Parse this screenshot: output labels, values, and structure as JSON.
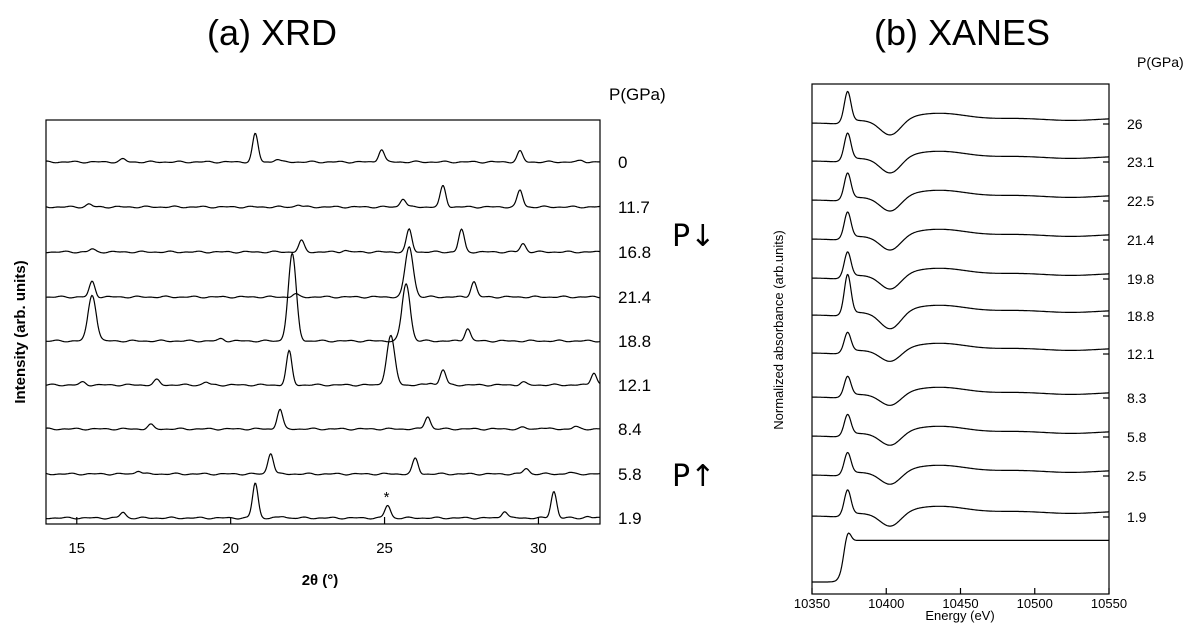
{
  "chart_data": [
    {
      "type": "line",
      "title": "(a) XRD",
      "xlabel": "2θ (°)",
      "ylabel": "Intensity (arb. units)",
      "xlim": [
        14,
        32
      ],
      "x_ticks": [
        15,
        20,
        25,
        30
      ],
      "pressure_header": "P(GPa)",
      "direction_labels": {
        "decreasing": "P↓",
        "increasing": "P↑"
      },
      "annotation": "*",
      "annotation_x": 25.1,
      "series": [
        {
          "name": "0",
          "peaks": [
            [
              16.5,
              0.1
            ],
            [
              20.8,
              1.0
            ],
            [
              21.5,
              0.1
            ],
            [
              24.9,
              0.45
            ],
            [
              29.4,
              0.38
            ],
            [
              31.4,
              0.05
            ]
          ]
        },
        {
          "name": "11.7",
          "peaks": [
            [
              15.4,
              0.1
            ],
            [
              22.2,
              0.08
            ],
            [
              25.6,
              0.3
            ],
            [
              26.9,
              0.75
            ],
            [
              29.4,
              0.6
            ]
          ]
        },
        {
          "name": "16.8",
          "peaks": [
            [
              15.5,
              0.1
            ],
            [
              22.3,
              0.4
            ],
            [
              23.7,
              0.06
            ],
            [
              25.8,
              0.8
            ],
            [
              27.5,
              0.8
            ],
            [
              29.5,
              0.3
            ]
          ]
        },
        {
          "name": "21.4",
          "peaks": [
            [
              15.5,
              0.55
            ],
            [
              22.1,
              0.1
            ],
            [
              25.8,
              1.8
            ],
            [
              27.9,
              0.55
            ]
          ]
        },
        {
          "name": "18.8",
          "peaks": [
            [
              15.5,
              1.65
            ],
            [
              19.7,
              0.08
            ],
            [
              22.0,
              3.1
            ],
            [
              25.7,
              2.05
            ],
            [
              27.7,
              0.45
            ]
          ]
        },
        {
          "name": "12.1",
          "peaks": [
            [
              15.2,
              0.1
            ],
            [
              17.6,
              0.18
            ],
            [
              19.2,
              0.1
            ],
            [
              21.9,
              1.2
            ],
            [
              25.2,
              1.75
            ],
            [
              26.5,
              0.08
            ],
            [
              26.9,
              0.55
            ],
            [
              29.5,
              0.1
            ],
            [
              31.8,
              0.45
            ]
          ]
        },
        {
          "name": "8.4",
          "peaks": [
            [
              17.4,
              0.15
            ],
            [
              21.6,
              0.7
            ],
            [
              26.4,
              0.45
            ],
            [
              29.5,
              0.05
            ],
            [
              30.1,
              0.05
            ],
            [
              31.2,
              0.08
            ]
          ]
        },
        {
          "name": "5.8",
          "peaks": [
            [
              17.0,
              0.12
            ],
            [
              21.3,
              0.75
            ],
            [
              26.0,
              0.55
            ],
            [
              29.6,
              0.2
            ],
            [
              31.0,
              0.05
            ]
          ]
        },
        {
          "name": "1.9",
          "peaks": [
            [
              16.5,
              0.2
            ],
            [
              20.8,
              1.25
            ],
            [
              21.7,
              0.06
            ],
            [
              25.1,
              0.45
            ],
            [
              28.9,
              0.25
            ],
            [
              30.5,
              0.95
            ],
            [
              31.6,
              0.05
            ]
          ]
        }
      ]
    },
    {
      "type": "line",
      "title": "(b) XANES",
      "xlabel": "Energy (eV)",
      "ylabel": "Normalized absorbance (arb.units)",
      "xlim": [
        10350,
        10550
      ],
      "x_ticks": [
        10350,
        10400,
        10450,
        10500,
        10550
      ],
      "pressure_header": "P(GPa)",
      "series": [
        {
          "name": "26",
          "white_line": 1.6,
          "dip": 0.9
        },
        {
          "name": "23.1",
          "white_line": 1.4,
          "dip": 0.9
        },
        {
          "name": "22.5",
          "white_line": 1.35,
          "dip": 0.85
        },
        {
          "name": "21.4",
          "white_line": 1.35,
          "dip": 0.85
        },
        {
          "name": "19.8",
          "white_line": 1.3,
          "dip": 0.85
        },
        {
          "name": "18.8",
          "white_line": 2.1,
          "dip": 1.0
        },
        {
          "name": "12.1",
          "white_line": 1.0,
          "dip": 0.7
        },
        {
          "name": "8.3",
          "white_line": 1.0,
          "dip": 0.7
        },
        {
          "name": "5.8",
          "white_line": 1.05,
          "dip": 0.75
        },
        {
          "name": "2.5",
          "white_line": 1.1,
          "dip": 0.75
        },
        {
          "name": "1.9",
          "white_line": 1.3,
          "dip": 0.8
        }
      ]
    }
  ]
}
